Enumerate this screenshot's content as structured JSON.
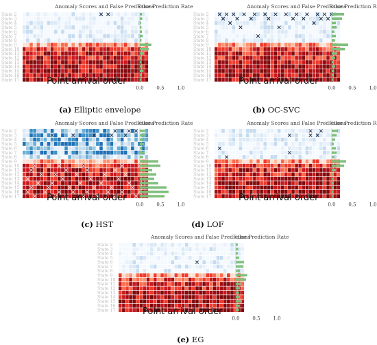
{
  "labels": {
    "title": "Anomaly Scores and False Predictions",
    "rate_title": "False Prediction Rate",
    "xlabel": "Point arrival order",
    "states": [
      "State 2",
      "State 3",
      "State 4",
      "State 5",
      "State 6",
      "State 7",
      "State 8",
      "State 9",
      "State 10",
      "State 11",
      "State 12",
      "State 13",
      "State 14",
      "State 15",
      "State 16",
      "State 17"
    ]
  },
  "colors": {
    "bar": "#7fbf7b",
    "cross": "#1a1a1a",
    "normal": "#4d7fc0",
    "anomaly": "#b2182b"
  },
  "chart_data": [
    {
      "type": "heatmap",
      "panel": "a",
      "caption_letter": "(a)",
      "caption_text": "Elliptic envelope",
      "title": "Anomaly Scores and False Predictions",
      "xlabel": "Point arrival order",
      "rate_title": "False Prediction Rate",
      "xticks": [
        "0.0",
        "0.5",
        "1.0"
      ],
      "xlim": [
        0,
        1
      ],
      "states": [
        "State 2",
        "State 3",
        "State 4",
        "State 5",
        "State 6",
        "State 7",
        "State 8",
        "State 9",
        "State 10",
        "State 11",
        "State 12",
        "State 13",
        "State 14",
        "State 15",
        "State 16",
        "State 17"
      ],
      "false_prediction_rate": [
        0.05,
        0.06,
        0.03,
        0.04,
        0.05,
        0.07,
        0.04,
        0.28,
        0.22,
        0.1,
        0.05,
        0.04,
        0.06,
        0.09,
        0.05,
        0.04
      ],
      "crosses": [
        [
          0,
          22
        ],
        [
          0,
          24
        ]
      ]
    },
    {
      "type": "heatmap",
      "panel": "b",
      "caption_letter": "(b)",
      "caption_text": "OC-SVC",
      "title": "Anomaly Scores and False Predictions",
      "xlabel": "Point arrival order",
      "rate_title": "False Prediction Rate",
      "xticks": [
        "0.0",
        "0.5",
        "1.0"
      ],
      "xlim": [
        0,
        1
      ],
      "states": [
        "State 2",
        "State 3",
        "State 4",
        "State 5",
        "State 6",
        "State 7",
        "State 8",
        "State 9",
        "State 10",
        "State 11",
        "State 12",
        "State 13",
        "State 14",
        "State 15",
        "State 16",
        "State 17"
      ],
      "false_prediction_rate": [
        0.3,
        0.25,
        0.1,
        0.12,
        0.06,
        0.1,
        0.08,
        0.4,
        0.32,
        0.12,
        0.08,
        0.05,
        0.08,
        0.06,
        0.05,
        0.04
      ],
      "crosses": [
        [
          0,
          1
        ],
        [
          0,
          3
        ],
        [
          0,
          5
        ],
        [
          0,
          8
        ],
        [
          0,
          11
        ],
        [
          0,
          14
        ],
        [
          0,
          17
        ],
        [
          0,
          20
        ],
        [
          0,
          23
        ],
        [
          0,
          26
        ],
        [
          0,
          29
        ],
        [
          0,
          31
        ],
        [
          0,
          33
        ],
        [
          1,
          2
        ],
        [
          1,
          6
        ],
        [
          1,
          10
        ],
        [
          1,
          15
        ],
        [
          1,
          22
        ],
        [
          1,
          25
        ],
        [
          1,
          30
        ],
        [
          1,
          32
        ],
        [
          2,
          4
        ],
        [
          2,
          28
        ],
        [
          3,
          7
        ],
        [
          3,
          18
        ],
        [
          5,
          12
        ]
      ]
    },
    {
      "type": "heatmap",
      "panel": "c",
      "caption_letter": "(c)",
      "caption_text": "HST",
      "title": "Anomaly Scores and False Predictions",
      "xlabel": "Point arrival order",
      "rate_title": "False Prediction Rate",
      "xticks": [
        "0.0",
        "0.5",
        "1.0"
      ],
      "xlim": [
        0,
        1
      ],
      "states": [
        "State 2",
        "State 3",
        "State 4",
        "State 5",
        "State 6",
        "State 7",
        "State 8",
        "State 9",
        "State 10",
        "State 11",
        "State 12",
        "State 13",
        "State 14",
        "State 15",
        "State 16",
        "State 17"
      ],
      "false_prediction_rate": [
        0.12,
        0.15,
        0.08,
        0.1,
        0.06,
        0.12,
        0.08,
        0.45,
        0.5,
        0.3,
        0.4,
        0.35,
        0.45,
        0.65,
        0.7,
        0.6
      ],
      "crosses": [
        [
          0,
          26
        ],
        [
          0,
          28
        ],
        [
          0,
          30
        ],
        [
          0,
          32
        ],
        [
          1,
          8
        ],
        [
          1,
          14
        ],
        [
          1,
          20
        ],
        [
          1,
          25
        ],
        [
          1,
          29
        ],
        [
          8,
          3
        ],
        [
          8,
          10
        ],
        [
          8,
          17
        ],
        [
          8,
          21
        ],
        [
          8,
          28
        ],
        [
          8,
          33
        ],
        [
          9,
          2
        ],
        [
          9,
          12
        ],
        [
          9,
          18
        ],
        [
          9,
          26
        ],
        [
          10,
          5
        ],
        [
          10,
          9
        ],
        [
          10,
          15
        ],
        [
          10,
          23
        ],
        [
          10,
          29
        ],
        [
          11,
          1
        ],
        [
          11,
          11
        ],
        [
          11,
          19
        ],
        [
          11,
          27
        ],
        [
          12,
          4
        ],
        [
          12,
          8
        ],
        [
          12,
          16
        ],
        [
          12,
          22
        ],
        [
          12,
          30
        ],
        [
          12,
          34
        ],
        [
          13,
          2
        ],
        [
          13,
          7
        ],
        [
          13,
          13
        ],
        [
          13,
          20
        ],
        [
          13,
          25
        ],
        [
          13,
          31
        ],
        [
          14,
          1
        ],
        [
          14,
          6
        ],
        [
          14,
          10
        ],
        [
          14,
          14
        ],
        [
          14,
          18
        ],
        [
          14,
          24
        ],
        [
          14,
          28
        ],
        [
          14,
          33
        ],
        [
          15,
          3
        ],
        [
          15,
          9
        ],
        [
          15,
          17
        ],
        [
          15,
          21
        ],
        [
          15,
          26
        ],
        [
          15,
          32
        ]
      ]
    },
    {
      "type": "heatmap",
      "panel": "d",
      "caption_letter": "(d)",
      "caption_text": "LOF",
      "title": "Anomaly Scores and False Predictions",
      "xlabel": "Point arrival order",
      "rate_title": "False Prediction Rate",
      "xticks": [
        "0.0",
        "0.5",
        "1.0"
      ],
      "xlim": [
        0,
        1
      ],
      "states": [
        "State 2",
        "State 3",
        "State 4",
        "State 5",
        "State 6",
        "State 7",
        "State 8",
        "State 9",
        "State 10",
        "State 11",
        "State 12",
        "State 13",
        "State 14",
        "State 15",
        "State 16",
        "State 17"
      ],
      "false_prediction_rate": [
        0.15,
        0.12,
        0.08,
        0.05,
        0.1,
        0.12,
        0.06,
        0.35,
        0.3,
        0.1,
        0.05,
        0.04,
        0.05,
        0.05,
        0.04,
        0.03
      ],
      "crosses": [
        [
          0,
          27
        ],
        [
          0,
          30
        ],
        [
          1,
          21
        ],
        [
          1,
          27
        ],
        [
          1,
          29
        ],
        [
          4,
          1
        ],
        [
          5,
          21
        ],
        [
          6,
          3
        ]
      ]
    },
    {
      "type": "heatmap",
      "panel": "e",
      "caption_letter": "(e)",
      "caption_text": "EG",
      "title": "Anomaly Scores and False Predictions",
      "xlabel": "Point arrival order",
      "rate_title": "False Prediction Rate",
      "xticks": [
        "0.0",
        "0.5",
        "1.0"
      ],
      "xlim": [
        0,
        1
      ],
      "states": [
        "State 2",
        "State 3",
        "State 4",
        "State 5",
        "State 6",
        "State 7",
        "State 8",
        "State 9",
        "State 10",
        "State 11",
        "State 12",
        "State 13",
        "State 14",
        "State 15",
        "State 16",
        "State 17"
      ],
      "false_prediction_rate": [
        0.05,
        0.06,
        0.05,
        0.08,
        0.2,
        0.18,
        0.1,
        0.28,
        0.25,
        0.12,
        0.1,
        0.08,
        0.1,
        0.15,
        0.1,
        0.08
      ],
      "crosses": [
        [
          4,
          22
        ]
      ]
    }
  ]
}
